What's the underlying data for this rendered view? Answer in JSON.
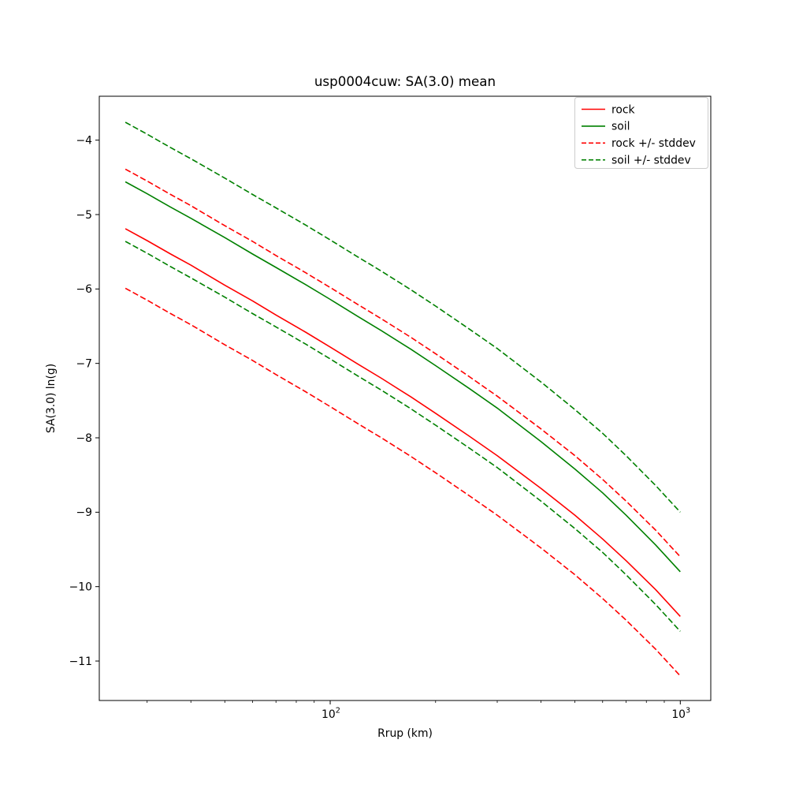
{
  "figure": {
    "title": "usp0004cuw: SA(3.0) mean",
    "background": "#ffffff"
  },
  "chart_data": {
    "type": "line",
    "title": "usp0004cuw: SA(3.0) mean",
    "xlabel": "Rrup (km)",
    "ylabel": "SA(3.0) ln(g)",
    "xscale": "log",
    "yscale": "linear",
    "xlim": [
      21.9,
      1222
    ],
    "ylim": [
      -11.53,
      -3.41
    ],
    "x_major_ticks": [
      100,
      1000
    ],
    "x_minor_ticks": [
      30,
      40,
      50,
      60,
      70,
      80,
      90,
      200,
      300,
      400,
      500,
      600,
      700,
      800,
      900
    ],
    "y_ticks": [
      -4,
      -5,
      -6,
      -7,
      -8,
      -9,
      -10,
      -11
    ],
    "grid": false,
    "stddev": 0.8,
    "colors": {
      "rock": "#ff0000",
      "soil": "#008000",
      "axis": "#000000",
      "legend_edge": "#cccccc"
    },
    "x": [
      26,
      30,
      35,
      40,
      50,
      60,
      70,
      85,
      100,
      120,
      140,
      170,
      200,
      250,
      300,
      400,
      500,
      600,
      700,
      850,
      1000
    ],
    "curves": [
      {
        "id": "rock-mean",
        "legend": "rock",
        "color": "#ff0000",
        "dash": "solid",
        "values": [
          -5.19,
          -5.35,
          -5.53,
          -5.68,
          -5.95,
          -6.16,
          -6.35,
          -6.58,
          -6.78,
          -7.01,
          -7.2,
          -7.45,
          -7.67,
          -7.98,
          -8.24,
          -8.68,
          -9.04,
          -9.36,
          -9.65,
          -10.04,
          -10.4
        ]
      },
      {
        "id": "soil-mean",
        "legend": "soil",
        "color": "#008000",
        "dash": "solid",
        "values": [
          -4.56,
          -4.72,
          -4.9,
          -5.05,
          -5.31,
          -5.53,
          -5.71,
          -5.94,
          -6.14,
          -6.37,
          -6.56,
          -6.81,
          -7.03,
          -7.34,
          -7.6,
          -8.05,
          -8.42,
          -8.74,
          -9.04,
          -9.44,
          -9.8
        ]
      },
      {
        "id": "rock-upper",
        "legend": "rock +/- stddev",
        "color": "#ff0000",
        "dash": "dashed",
        "values": [
          -4.39,
          -4.55,
          -4.73,
          -4.88,
          -5.15,
          -5.36,
          -5.55,
          -5.78,
          -5.98,
          -6.21,
          -6.4,
          -6.65,
          -6.87,
          -7.18,
          -7.44,
          -7.88,
          -8.24,
          -8.56,
          -8.85,
          -9.24,
          -9.6
        ]
      },
      {
        "id": "rock-lower",
        "legend": "rock +/- stddev",
        "color": "#ff0000",
        "dash": "dashed",
        "values": [
          -5.99,
          -6.15,
          -6.33,
          -6.48,
          -6.75,
          -6.96,
          -7.15,
          -7.38,
          -7.58,
          -7.81,
          -8.0,
          -8.25,
          -8.47,
          -8.78,
          -9.04,
          -9.48,
          -9.84,
          -10.16,
          -10.45,
          -10.84,
          -11.2
        ]
      },
      {
        "id": "soil-upper",
        "legend": "soil +/- stddev",
        "color": "#008000",
        "dash": "dashed",
        "values": [
          -3.76,
          -3.92,
          -4.1,
          -4.25,
          -4.51,
          -4.73,
          -4.91,
          -5.14,
          -5.34,
          -5.57,
          -5.76,
          -6.01,
          -6.23,
          -6.54,
          -6.8,
          -7.25,
          -7.62,
          -7.94,
          -8.24,
          -8.64,
          -9.0
        ]
      },
      {
        "id": "soil-lower",
        "legend": "soil +/- stddev",
        "color": "#008000",
        "dash": "dashed",
        "values": [
          -5.36,
          -5.52,
          -5.7,
          -5.85,
          -6.11,
          -6.33,
          -6.51,
          -6.74,
          -6.94,
          -7.17,
          -7.36,
          -7.61,
          -7.83,
          -8.14,
          -8.4,
          -8.85,
          -9.22,
          -9.54,
          -9.84,
          -10.24,
          -10.6
        ]
      }
    ],
    "legend": {
      "position": "upper right",
      "entries": [
        {
          "label": "rock",
          "color": "#ff0000",
          "dash": "solid"
        },
        {
          "label": "soil",
          "color": "#008000",
          "dash": "solid"
        },
        {
          "label": "rock +/- stddev",
          "color": "#ff0000",
          "dash": "dashed"
        },
        {
          "label": "soil +/- stddev",
          "color": "#008000",
          "dash": "dashed"
        }
      ]
    }
  }
}
